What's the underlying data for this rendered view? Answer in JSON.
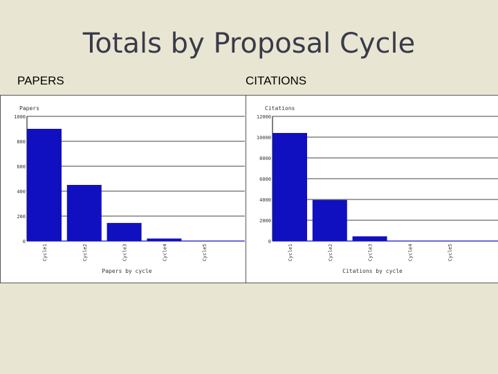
{
  "slide": {
    "title": "Totals by Proposal Cycle",
    "left_label": "PAPERS",
    "right_label": "CITATIONS"
  },
  "colors": {
    "bar": "#1010c0",
    "background": "#e8e6d2",
    "grid": "#000000"
  },
  "chart_data": [
    {
      "type": "bar",
      "title": "",
      "ylabel": "Papers",
      "xlabel": "Papers by cycle",
      "categories": [
        "Cycle1",
        "Cycle2",
        "Cycle3",
        "Cycle4",
        "Cycle5"
      ],
      "values": [
        900,
        450,
        145,
        20,
        0
      ],
      "ylim": [
        0,
        1000
      ],
      "yticks": [
        0,
        200,
        400,
        600,
        800,
        1000
      ],
      "grid": true
    },
    {
      "type": "bar",
      "title": "",
      "ylabel": "Citations",
      "xlabel": "Citations by cycle",
      "categories": [
        "Cycle1",
        "Cycle2",
        "Cycle3",
        "Cycle4",
        "Cycle5"
      ],
      "values": [
        10400,
        3950,
        450,
        0,
        0
      ],
      "ylim": [
        0,
        12000
      ],
      "yticks": [
        0,
        2000,
        4000,
        6000,
        8000,
        10000,
        12000
      ],
      "grid": true
    }
  ]
}
